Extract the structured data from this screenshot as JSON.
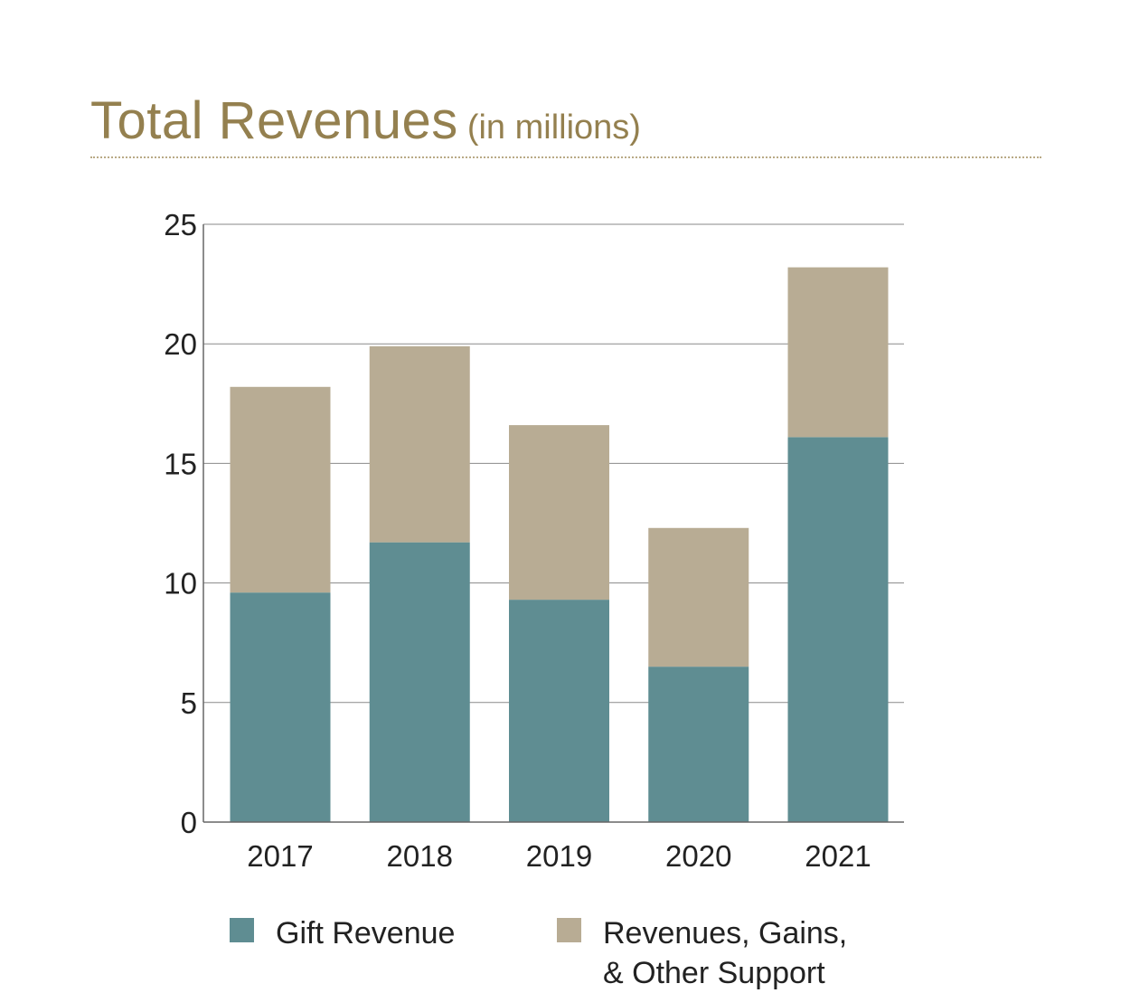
{
  "header": {
    "title": "Total Revenues",
    "subtitle": "(in millions)"
  },
  "colors": {
    "gift": "#5f8d92",
    "other": "#b8ac94",
    "title": "#94804f",
    "grid": "#8a8a8a"
  },
  "legend": {
    "gift_label": "Gift Revenue",
    "other_label_line1": "Revenues, Gains,",
    "other_label_line2": "& Other Support"
  },
  "chart_data": {
    "type": "bar",
    "stacked": true,
    "title": "Total Revenues (in millions)",
    "xlabel": "",
    "ylabel": "",
    "categories": [
      "2017",
      "2018",
      "2019",
      "2020",
      "2021"
    ],
    "series": [
      {
        "name": "Gift Revenue",
        "values": [
          9.6,
          11.7,
          9.3,
          6.5,
          16.1
        ]
      },
      {
        "name": "Revenues, Gains, & Other Support",
        "values": [
          8.6,
          8.2,
          7.3,
          5.8,
          7.1
        ]
      }
    ],
    "ylim": [
      0,
      25
    ],
    "yticks": [
      0,
      5,
      10,
      15,
      20,
      25
    ],
    "grid": true,
    "legend_position": "bottom"
  }
}
